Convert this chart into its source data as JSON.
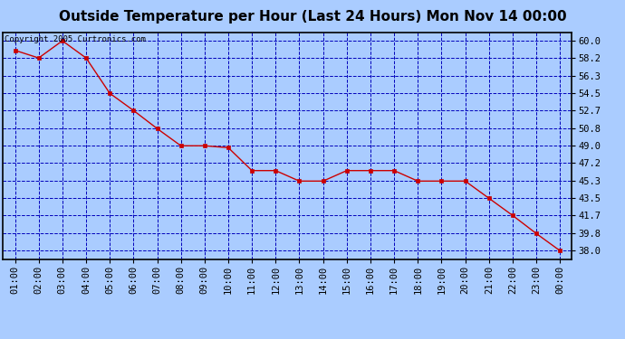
{
  "title": "Outside Temperature per Hour (Last 24 Hours) Mon Nov 14 00:00",
  "copyright": "Copyright 2005 Curtronics.com",
  "x_labels": [
    "01:00",
    "02:00",
    "03:00",
    "04:00",
    "05:00",
    "06:00",
    "07:00",
    "08:00",
    "09:00",
    "10:00",
    "11:00",
    "12:00",
    "13:00",
    "14:00",
    "15:00",
    "16:00",
    "17:00",
    "18:00",
    "19:00",
    "20:00",
    "21:00",
    "22:00",
    "23:00",
    "00:00"
  ],
  "y_values": [
    59.0,
    58.2,
    60.0,
    58.2,
    54.5,
    52.7,
    50.8,
    49.0,
    49.0,
    48.8,
    46.4,
    46.4,
    45.3,
    45.3,
    46.4,
    46.4,
    46.4,
    45.3,
    45.3,
    45.3,
    43.5,
    41.7,
    39.8,
    38.0
  ],
  "line_color": "#cc0000",
  "marker_color": "#cc0000",
  "bg_color": "#aaccff",
  "plot_bg_color": "#aaccff",
  "grid_color": "#0000bb",
  "border_color": "#000000",
  "title_color": "#000000",
  "y_tick_labels": [
    "38.0",
    "39.8",
    "41.7",
    "43.5",
    "45.3",
    "47.2",
    "49.0",
    "50.8",
    "52.7",
    "54.5",
    "56.3",
    "58.2",
    "60.0"
  ],
  "y_tick_values": [
    38.0,
    39.8,
    41.7,
    43.5,
    45.3,
    47.2,
    49.0,
    50.8,
    52.7,
    54.5,
    56.3,
    58.2,
    60.0
  ],
  "ylim": [
    37.1,
    60.9
  ],
  "title_fontsize": 11,
  "copyright_fontsize": 6.5,
  "tick_fontsize": 7.5,
  "marker_size": 3
}
